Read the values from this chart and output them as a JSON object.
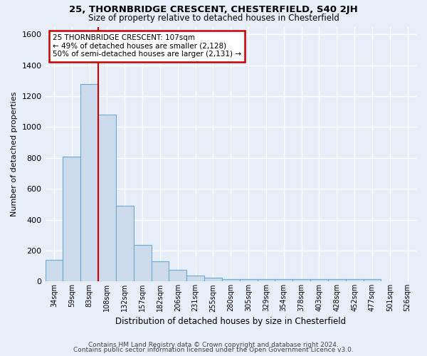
{
  "title1": "25, THORNBRIDGE CRESCENT, CHESTERFIELD, S40 2JH",
  "title2": "Size of property relative to detached houses in Chesterfield",
  "xlabel": "Distribution of detached houses by size in Chesterfield",
  "ylabel": "Number of detached properties",
  "bar_values": [
    140,
    810,
    1280,
    1080,
    490,
    235,
    130,
    75,
    40,
    25,
    15,
    15,
    15,
    15,
    15,
    15,
    15,
    15,
    15,
    0,
    0
  ],
  "bar_labels": [
    "34sqm",
    "59sqm",
    "83sqm",
    "108sqm",
    "132sqm",
    "157sqm",
    "182sqm",
    "206sqm",
    "231sqm",
    "255sqm",
    "280sqm",
    "305sqm",
    "329sqm",
    "354sqm",
    "378sqm",
    "403sqm",
    "428sqm",
    "452sqm",
    "477sqm",
    "501sqm",
    "526sqm"
  ],
  "num_bars": 21,
  "bar_color": "#ccdaec",
  "bar_edge_color": "#6aaad4",
  "fig_background_color": "#e8eef8",
  "ax_background_color": "#e8eef8",
  "grid_color": "#ffffff",
  "red_line_x": 2.5,
  "annotation_text": "25 THORNBRIDGE CRESCENT: 107sqm\n← 49% of detached houses are smaller (2,128)\n50% of semi-detached houses are larger (2,131) →",
  "annotation_box_color": "#ffffff",
  "annotation_border_color": "#cc0000",
  "ylim": [
    0,
    1650
  ],
  "yticks": [
    0,
    200,
    400,
    600,
    800,
    1000,
    1200,
    1400,
    1600
  ],
  "footer1": "Contains HM Land Registry data © Crown copyright and database right 2024.",
  "footer2": "Contains public sector information licensed under the Open Government Licence v3.0."
}
